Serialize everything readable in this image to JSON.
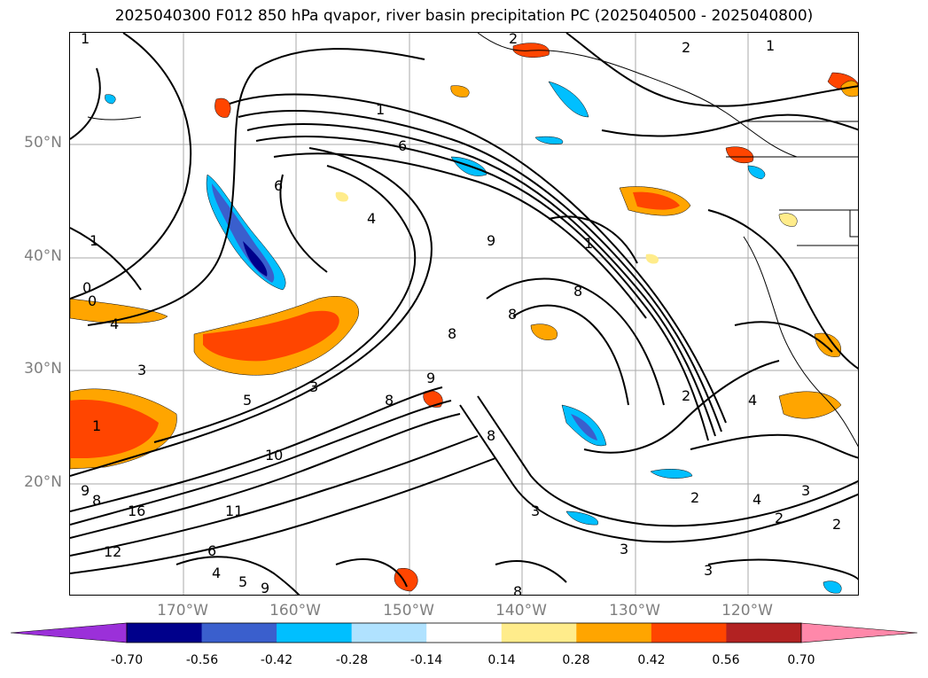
{
  "title": "2025040300 F012 850 hPa qvapor, river basin precipitation PC (2025040500 - 2025040800)",
  "map": {
    "lat_labels": [
      "50°N",
      "40°N",
      "30°N",
      "20°N"
    ],
    "lon_labels": [
      "170°W",
      "160°W",
      "150°W",
      "140°W",
      "130°W",
      "120°W"
    ],
    "contour_labels": [
      "1",
      "1",
      "2",
      "2",
      "1",
      "6",
      "6",
      "4",
      "9",
      "1",
      "8",
      "1",
      "0",
      "0",
      "4",
      "3",
      "1",
      "5",
      "3",
      "8",
      "10",
      "11",
      "9",
      "8",
      "16",
      "12",
      "6",
      "4",
      "5",
      "9",
      "8",
      "9",
      "8",
      "3",
      "3",
      "2",
      "4",
      "2",
      "3",
      "2",
      "2",
      "4",
      "8",
      "3",
      "8"
    ]
  },
  "colorbar": {
    "tick_labels": [
      "-0.70",
      "-0.56",
      "-0.42",
      "-0.28",
      "-0.14",
      "0.14",
      "0.28",
      "0.42",
      "0.56",
      "0.70"
    ],
    "colors": [
      "#9b30d9",
      "#00008b",
      "#3a5fcd",
      "#00bfff",
      "#b0e2ff",
      "#ffffff",
      "#ffec8b",
      "#ffa500",
      "#ff4500",
      "#b22222",
      "#ff88aa"
    ]
  }
}
